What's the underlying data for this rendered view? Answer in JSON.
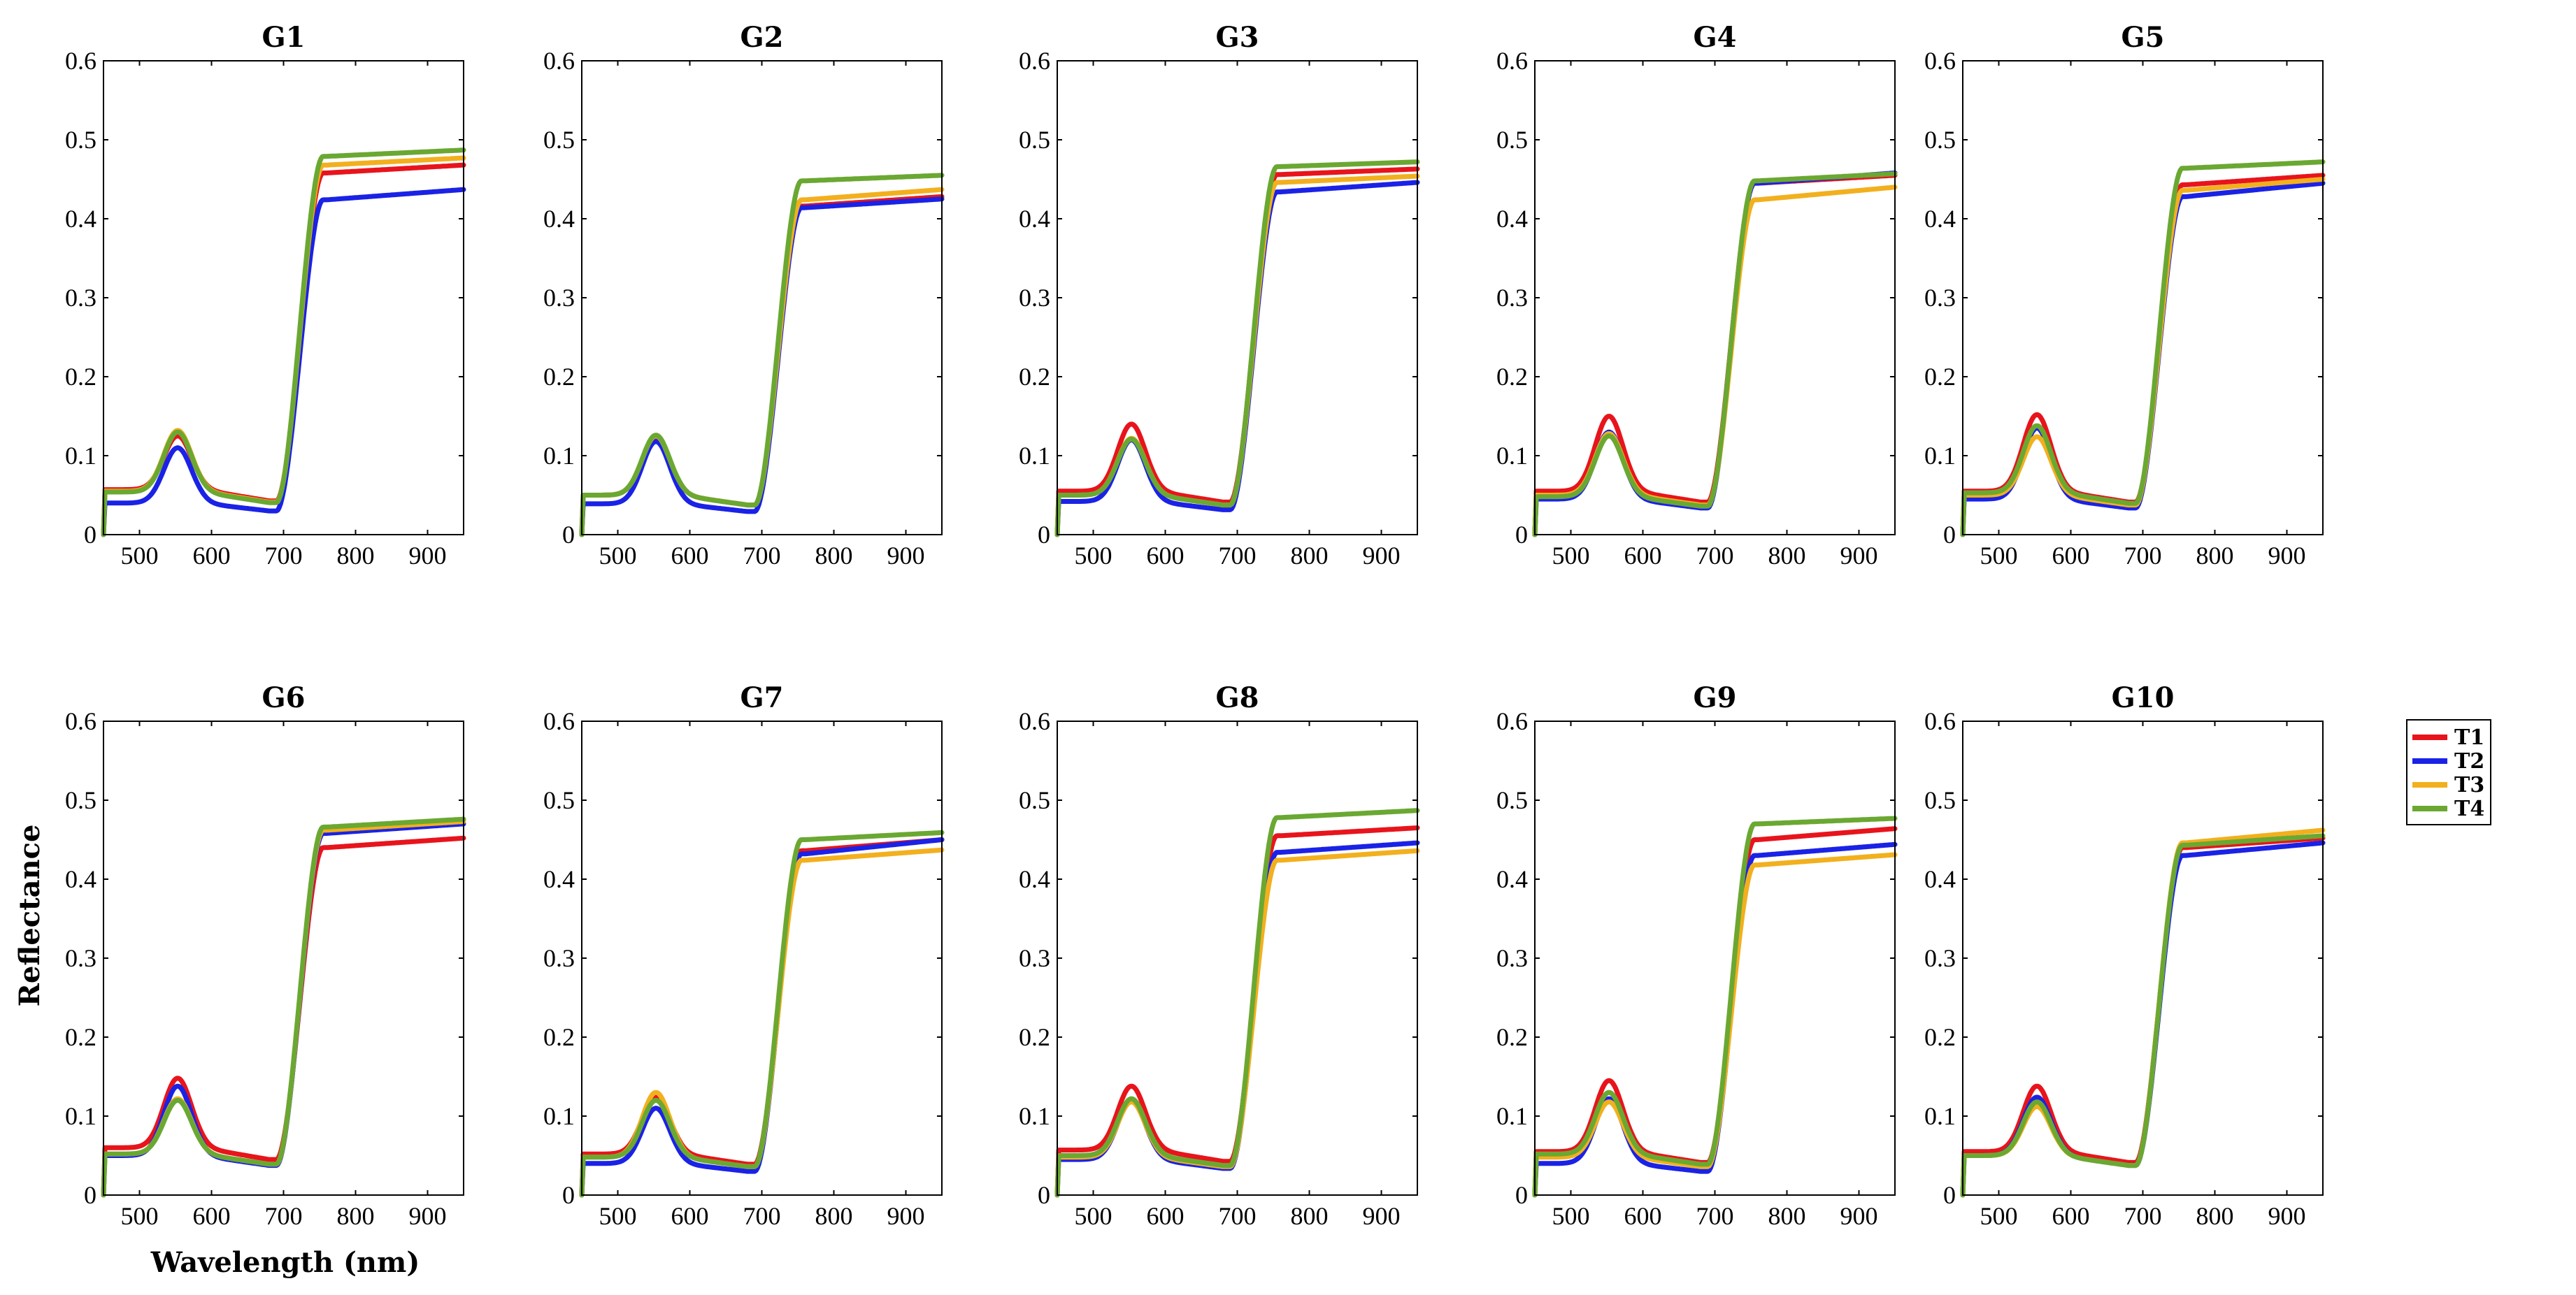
{
  "chart_data": {
    "type": "line",
    "figure_description_labels": {
      "xlabel": "Wavelength (nm)",
      "ylabel": "Reflectance"
    },
    "xlim": [
      450,
      950
    ],
    "ylim": [
      0,
      0.6
    ],
    "xticks": [
      500,
      600,
      700,
      800,
      900
    ],
    "yticks": [
      0,
      0.1,
      0.2,
      0.3,
      0.4,
      0.5,
      0.6
    ],
    "ytick_labels": [
      "0",
      "0.1",
      "0.2",
      "0.3",
      "0.4",
      "0.5",
      "0.6"
    ],
    "legend": {
      "placement": "right",
      "entries": [
        {
          "name": "T1",
          "color": "#e8141c"
        },
        {
          "name": "T2",
          "color": "#1a22e6"
        },
        {
          "name": "T3",
          "color": "#f2b01e"
        },
        {
          "name": "T4",
          "color": "#6aa832"
        }
      ]
    },
    "panels": [
      {
        "title": "G1",
        "series": [
          {
            "name": "T1",
            "base": 0.057,
            "peak": 0.125,
            "plateau": 0.458,
            "end": 0.468
          },
          {
            "name": "T2",
            "base": 0.04,
            "peak": 0.11,
            "plateau": 0.424,
            "end": 0.437
          },
          {
            "name": "T3",
            "base": 0.055,
            "peak": 0.132,
            "plateau": 0.468,
            "end": 0.477
          },
          {
            "name": "T4",
            "base": 0.054,
            "peak": 0.13,
            "plateau": 0.479,
            "end": 0.487
          }
        ]
      },
      {
        "title": "G2",
        "series": [
          {
            "name": "T1",
            "base": 0.05,
            "peak": 0.124,
            "plateau": 0.416,
            "end": 0.428
          },
          {
            "name": "T2",
            "base": 0.039,
            "peak": 0.118,
            "plateau": 0.414,
            "end": 0.425
          },
          {
            "name": "T3",
            "base": 0.05,
            "peak": 0.125,
            "plateau": 0.424,
            "end": 0.437
          },
          {
            "name": "T4",
            "base": 0.05,
            "peak": 0.126,
            "plateau": 0.448,
            "end": 0.455
          }
        ]
      },
      {
        "title": "G3",
        "series": [
          {
            "name": "T1",
            "base": 0.055,
            "peak": 0.14,
            "plateau": 0.456,
            "end": 0.463
          },
          {
            "name": "T2",
            "base": 0.042,
            "peak": 0.12,
            "plateau": 0.434,
            "end": 0.446
          },
          {
            "name": "T3",
            "base": 0.05,
            "peak": 0.122,
            "plateau": 0.446,
            "end": 0.454
          },
          {
            "name": "T4",
            "base": 0.05,
            "peak": 0.121,
            "plateau": 0.466,
            "end": 0.472
          }
        ]
      },
      {
        "title": "G4",
        "series": [
          {
            "name": "T1",
            "base": 0.055,
            "peak": 0.15,
            "plateau": 0.445,
            "end": 0.455
          },
          {
            "name": "T2",
            "base": 0.045,
            "peak": 0.13,
            "plateau": 0.445,
            "end": 0.458
          },
          {
            "name": "T3",
            "base": 0.05,
            "peak": 0.128,
            "plateau": 0.424,
            "end": 0.44
          },
          {
            "name": "T4",
            "base": 0.048,
            "peak": 0.125,
            "plateau": 0.448,
            "end": 0.457
          }
        ]
      },
      {
        "title": "G5",
        "series": [
          {
            "name": "T1",
            "base": 0.055,
            "peak": 0.152,
            "plateau": 0.443,
            "end": 0.455
          },
          {
            "name": "T2",
            "base": 0.045,
            "peak": 0.135,
            "plateau": 0.428,
            "end": 0.445
          },
          {
            "name": "T3",
            "base": 0.05,
            "peak": 0.124,
            "plateau": 0.436,
            "end": 0.45
          },
          {
            "name": "T4",
            "base": 0.053,
            "peak": 0.138,
            "plateau": 0.464,
            "end": 0.472
          }
        ]
      },
      {
        "title": "G6",
        "series": [
          {
            "name": "T1",
            "base": 0.06,
            "peak": 0.148,
            "plateau": 0.44,
            "end": 0.452
          },
          {
            "name": "T2",
            "base": 0.05,
            "peak": 0.138,
            "plateau": 0.458,
            "end": 0.47
          },
          {
            "name": "T3",
            "base": 0.052,
            "peak": 0.122,
            "plateau": 0.462,
            "end": 0.473
          },
          {
            "name": "T4",
            "base": 0.052,
            "peak": 0.12,
            "plateau": 0.466,
            "end": 0.476
          }
        ]
      },
      {
        "title": "G7",
        "series": [
          {
            "name": "T1",
            "base": 0.052,
            "peak": 0.125,
            "plateau": 0.436,
            "end": 0.45
          },
          {
            "name": "T2",
            "base": 0.04,
            "peak": 0.11,
            "plateau": 0.432,
            "end": 0.45
          },
          {
            "name": "T3",
            "base": 0.048,
            "peak": 0.13,
            "plateau": 0.424,
            "end": 0.437
          },
          {
            "name": "T4",
            "base": 0.048,
            "peak": 0.12,
            "plateau": 0.45,
            "end": 0.459
          }
        ]
      },
      {
        "title": "G8",
        "series": [
          {
            "name": "T1",
            "base": 0.057,
            "peak": 0.138,
            "plateau": 0.455,
            "end": 0.465
          },
          {
            "name": "T2",
            "base": 0.045,
            "peak": 0.12,
            "plateau": 0.434,
            "end": 0.446
          },
          {
            "name": "T3",
            "base": 0.048,
            "peak": 0.118,
            "plateau": 0.424,
            "end": 0.436
          },
          {
            "name": "T4",
            "base": 0.05,
            "peak": 0.122,
            "plateau": 0.478,
            "end": 0.487
          }
        ]
      },
      {
        "title": "G9",
        "series": [
          {
            "name": "T1",
            "base": 0.055,
            "peak": 0.145,
            "plateau": 0.45,
            "end": 0.464
          },
          {
            "name": "T2",
            "base": 0.04,
            "peak": 0.122,
            "plateau": 0.43,
            "end": 0.444
          },
          {
            "name": "T3",
            "base": 0.048,
            "peak": 0.118,
            "plateau": 0.418,
            "end": 0.431
          },
          {
            "name": "T4",
            "base": 0.052,
            "peak": 0.13,
            "plateau": 0.47,
            "end": 0.477
          }
        ]
      },
      {
        "title": "G10",
        "series": [
          {
            "name": "T1",
            "base": 0.055,
            "peak": 0.138,
            "plateau": 0.44,
            "end": 0.452
          },
          {
            "name": "T2",
            "base": 0.05,
            "peak": 0.124,
            "plateau": 0.43,
            "end": 0.446
          },
          {
            "name": "T3",
            "base": 0.05,
            "peak": 0.112,
            "plateau": 0.446,
            "end": 0.462
          },
          {
            "name": "T4",
            "base": 0.05,
            "peak": 0.118,
            "plateau": 0.443,
            "end": 0.455
          }
        ]
      }
    ]
  }
}
